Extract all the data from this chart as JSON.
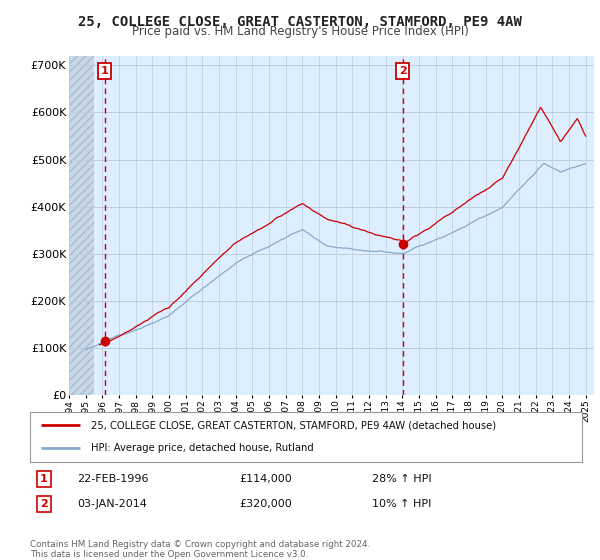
{
  "title": "25, COLLEGE CLOSE, GREAT CASTERTON, STAMFORD, PE9 4AW",
  "subtitle": "Price paid vs. HM Land Registry's House Price Index (HPI)",
  "title_fontsize": 10,
  "subtitle_fontsize": 8.5,
  "background_color": "#ffffff",
  "plot_bg_color": "#ddeeff",
  "ylabel_values": [
    "£0",
    "£100K",
    "£200K",
    "£300K",
    "£400K",
    "£500K",
    "£600K",
    "£700K"
  ],
  "ytick_values": [
    0,
    100000,
    200000,
    300000,
    400000,
    500000,
    600000,
    700000
  ],
  "ylim": [
    0,
    720000
  ],
  "xlim_start": 1994.0,
  "xlim_end": 2025.5,
  "xtick_years": [
    1994,
    1995,
    1996,
    1997,
    1998,
    1999,
    2000,
    2001,
    2002,
    2003,
    2004,
    2005,
    2006,
    2007,
    2008,
    2009,
    2010,
    2011,
    2012,
    2013,
    2014,
    2015,
    2016,
    2017,
    2018,
    2019,
    2020,
    2021,
    2022,
    2023,
    2024,
    2025
  ],
  "sale1_x": 1996.13,
  "sale1_y": 114000,
  "sale1_label": "1",
  "sale1_date": "22-FEB-1996",
  "sale1_price": "£114,000",
  "sale1_hpi": "28% ↑ HPI",
  "sale2_x": 2014.01,
  "sale2_y": 320000,
  "sale2_label": "2",
  "sale2_date": "03-JAN-2014",
  "sale2_price": "£320,000",
  "sale2_hpi": "10% ↑ HPI",
  "sale_marker_color": "#cc0000",
  "sale_vline_color": "#cc0000",
  "red_line_color": "#cc0000",
  "blue_line_color": "#88aacc",
  "legend_label_red": "25, COLLEGE CLOSE, GREAT CASTERTON, STAMFORD, PE9 4AW (detached house)",
  "legend_label_blue": "HPI: Average price, detached house, Rutland",
  "footer_text": "Contains HM Land Registry data © Crown copyright and database right 2024.\nThis data is licensed under the Open Government Licence v3.0.",
  "hatch_left_x": 1994.0,
  "hatch_right_x": 1995.5
}
